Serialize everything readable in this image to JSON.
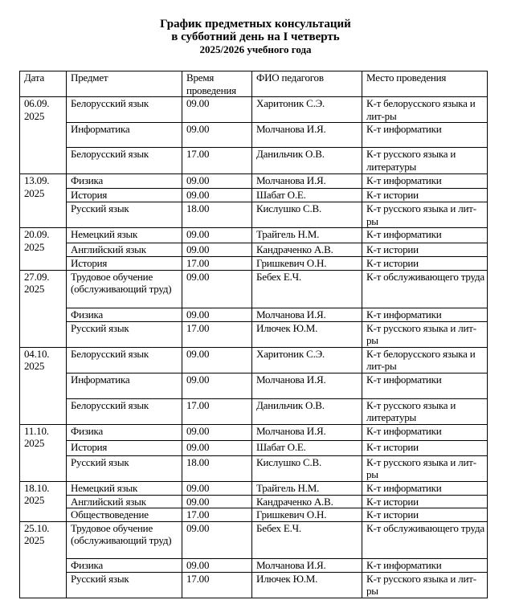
{
  "title": {
    "line1": "График предметных консультаций",
    "line2": "в субботний день  на I четверть",
    "line3": "2025/2026 учебного года"
  },
  "table": {
    "headers": [
      "Дата",
      "Предмет",
      "Время проведения",
      "ФИО   педагогов",
      "Место проведения"
    ],
    "groups": [
      {
        "date": "06.09. 2025",
        "rows": [
          [
            "Белорусский язык",
            "09.00",
            "Харитоник С.Э.",
            "К-т белорусского языка и лит-ры"
          ],
          [
            "Информатика",
            "09.00",
            "Молчанова И.Я.",
            "К-т  информатики"
          ],
          [
            "Белорусский язык",
            "17.00",
            "Данильчик О.В.",
            "К-т русского языка и литературы"
          ]
        ]
      },
      {
        "date": "13.09. 2025",
        "rows": [
          [
            "Физика",
            "09.00",
            "Молчанова И.Я.",
            "К-т  информатики"
          ],
          [
            "История",
            "09.00",
            "Шабат О.Е.",
            "К-т истории"
          ],
          [
            "Русский язык",
            "18.00",
            "Кислушко С.В.",
            "К-т русского языка и лит-ры"
          ]
        ]
      },
      {
        "date": "20.09. 2025",
        "rows": [
          [
            "Немецкий язык",
            "09.00",
            "Трайгель Н.М.",
            "К-т информатики"
          ],
          [
            "Английский язык",
            "09.00",
            "Кандраченко А.В.",
            "К-т истории"
          ],
          [
            "История",
            "17.00",
            "Гришкевич О.Н.",
            "К-т истории"
          ]
        ]
      },
      {
        "date": "27.09. 2025",
        "rows": [
          [
            "Трудовое обучение (обслуживающий труд)",
            "09.00",
            "Бебех Е.Ч.",
            "К-т обслуживающего труда"
          ],
          [
            "Физика",
            "09.00",
            "Молчанова И.Я.",
            "К-т информатики"
          ],
          [
            "Русский язык",
            "17.00",
            "Илючек Ю.М.",
            "К-т русского языка и лит-ры"
          ]
        ]
      },
      {
        "date": "04.10. 2025",
        "rows": [
          [
            "Белорусский язык",
            "09.00",
            "Харитоник С.Э.",
            "К-т белорусского языка и лит-ры"
          ],
          [
            "Информатика",
            "09.00",
            "Молчанова И.Я.",
            "К-т  информатики"
          ],
          [
            "Белорусский язык",
            "17.00",
            "Данильчик О.В.",
            "К-т русского языка и литературы"
          ]
        ]
      },
      {
        "date": "11.10. 2025",
        "rows": [
          [
            "Физика",
            "09.00",
            "Молчанова И.Я.",
            "К-т  информатики"
          ],
          [
            "История",
            "09.00",
            "Шабат О.Е.",
            "К-т истории"
          ],
          [
            "Русский язык",
            "18.00",
            "Кислушко С.В.",
            "К-т русского языка и лит-ры"
          ]
        ]
      },
      {
        "date": "18.10. 2025",
        "rows": [
          [
            "Немецкий язык",
            "09.00",
            "Трайгель Н.М.",
            "К-т информатики"
          ],
          [
            "Английский язык",
            "09.00",
            "Кандраченко А.В.",
            "К-т истории"
          ],
          [
            "Обществоведение",
            "17.00",
            "Гришкевич О.Н.",
            "К-т истории"
          ]
        ]
      },
      {
        "date": "25.10. 2025",
        "rows": [
          [
            "Трудовое обучение (обслуживающий труд)",
            "09.00",
            "Бебех Е.Ч.",
            "К-т обслуживающего труда"
          ],
          [
            "Физика",
            "09.00",
            "Молчанова И.Я.",
            "К-т информатики"
          ],
          [
            "Русский язык",
            "17.00",
            "Илючек Ю.М.",
            "К-т русского языка и лит-ры"
          ]
        ]
      }
    ]
  }
}
